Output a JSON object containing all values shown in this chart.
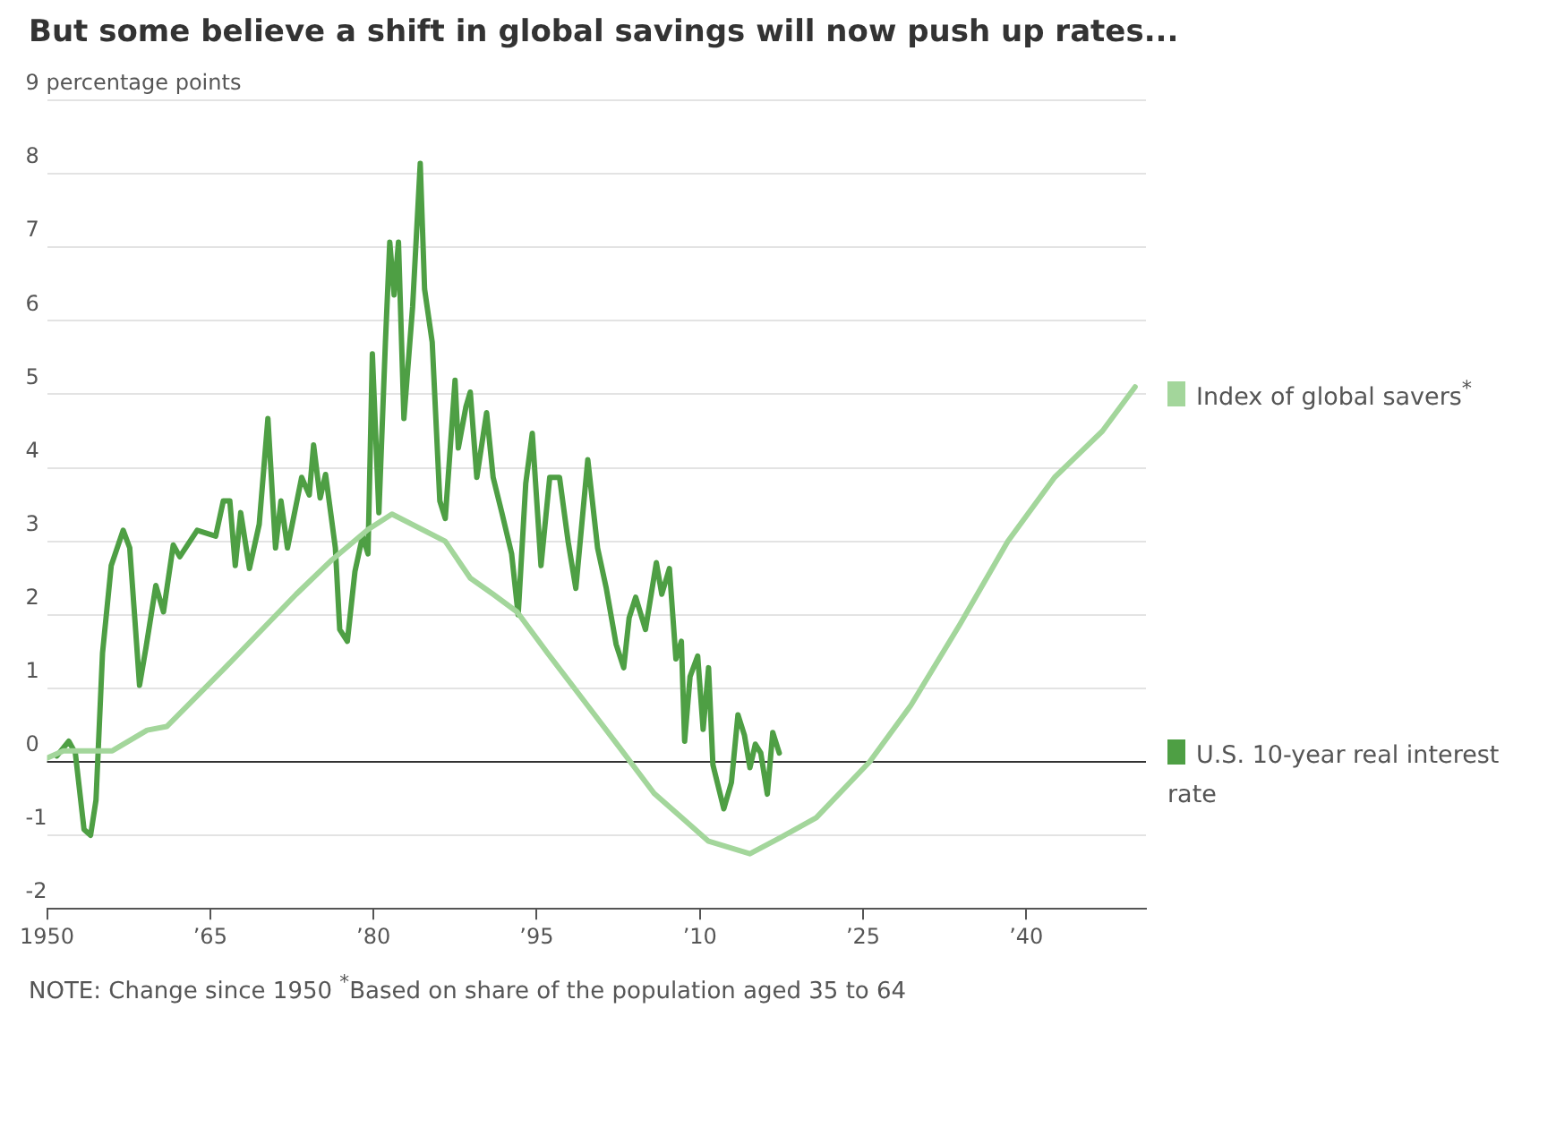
{
  "chart_data": {
    "type": "line",
    "title": "But some believe a shift in global savings will now push up rates...",
    "annotations": [
      "NOTE: Change since 1950 $^{*}$Based on share of the population aged 35 to 64"
    ],
    "series": [
      {
        "name": "Index of global savers$^{*}$",
        "color": "#a3d69b",
        "x": [
          1950,
          1951.5,
          1956,
          1959.2,
          1961,
          1966.3,
          1972.9,
          1976.2,
          1979.5,
          1981.7,
          1986.6,
          1988.9,
          1991,
          1993.2,
          1996,
          1999.3,
          2002.6,
          2005.8,
          2010.8,
          2014.6,
          2017.4,
          2020.7,
          2025.6,
          2029.4,
          2033.9,
          2038.3,
          2042.6,
          2047,
          2050
        ],
        "values": [
          0.05,
          0.15,
          0.15,
          0.43,
          0.48,
          1.27,
          2.28,
          2.75,
          3.16,
          3.37,
          3.0,
          2.5,
          2.28,
          2.04,
          1.48,
          0.84,
          0.2,
          -0.43,
          -1.08,
          -1.25,
          -1.03,
          -0.76,
          0,
          0.77,
          1.87,
          3.0,
          3.87,
          4.5,
          5.1
        ]
      },
      {
        "name": "U.S. 10-year real interest rate",
        "color": "#4e9f44",
        "x": [
          1950.9,
          1952.0,
          1952.6,
          1953.4,
          1954.0,
          1954.5,
          1955.1,
          1955.9,
          1957.0,
          1957.6,
          1958.1,
          1958.5,
          1959.1,
          1960.0,
          1960.7,
          1961.6,
          1962.2,
          1963.8,
          1965.5,
          1966.2,
          1966.8,
          1967.3,
          1967.8,
          1968.6,
          1969.5,
          1970.3,
          1971.0,
          1971.5,
          1972.1,
          1973.4,
          1974.1,
          1974.5,
          1975.1,
          1975.6,
          1976.5,
          1976.9,
          1977.6,
          1978.3,
          1979.0,
          1979.5,
          1979.9,
          1980.5,
          1981.1,
          1981.5,
          1981.9,
          1982.3,
          1982.8,
          1983.6,
          1984.3,
          1984.7,
          1985.4,
          1986.1,
          1986.6,
          1987.5,
          1987.8,
          1988.5,
          1988.9,
          1989.5,
          1990.4,
          1991.0,
          1991.8,
          1992.7,
          1993.3,
          1994.0,
          1994.6,
          1995.4,
          1996.2,
          1997.1,
          1997.9,
          1998.6,
          1999.7,
          2000.6,
          2001.4,
          2002.3,
          2003.0,
          2003.5,
          2004.1,
          2005.0,
          2006.0,
          2006.5,
          2007.2,
          2007.8,
          2008.3,
          2008.6,
          2009.1,
          2009.8,
          2010.3,
          2010.8,
          2011.2,
          2012.2,
          2012.9,
          2013.5,
          2014.1,
          2014.6,
          2015.1,
          2015.6,
          2016.2,
          2016.7,
          2017.3
        ],
        "values": [
          0.08,
          0.28,
          0.12,
          -0.92,
          -1.0,
          -0.52,
          1.48,
          2.67,
          3.15,
          2.91,
          1.88,
          1.04,
          1.56,
          2.4,
          2.04,
          2.95,
          2.79,
          3.15,
          3.07,
          3.55,
          3.55,
          2.67,
          3.39,
          2.63,
          3.23,
          4.67,
          2.91,
          3.55,
          2.91,
          3.87,
          3.63,
          4.31,
          3.59,
          3.91,
          2.91,
          1.8,
          1.64,
          2.59,
          3.07,
          2.83,
          5.55,
          3.39,
          5.71,
          7.07,
          6.35,
          7.07,
          4.67,
          6.19,
          8.14,
          6.43,
          5.71,
          3.55,
          3.31,
          5.19,
          4.27,
          4.83,
          5.03,
          3.87,
          4.75,
          3.87,
          3.39,
          2.83,
          2.0,
          3.79,
          4.47,
          2.67,
          3.87,
          3.87,
          2.99,
          2.36,
          4.11,
          2.91,
          2.36,
          1.6,
          1.28,
          1.96,
          2.24,
          1.8,
          2.71,
          2.28,
          2.63,
          1.4,
          1.64,
          0.28,
          1.16,
          1.44,
          0.44,
          1.28,
          -0.04,
          -0.64,
          -0.28,
          0.64,
          0.36,
          -0.08,
          0.24,
          0.12,
          -0.44,
          0.4,
          0.12
        ]
      }
    ],
    "xlim": [
      1950,
      2051
    ],
    "xticks": [
      1950,
      {
        "value": 1965,
        "label": "’65"
      },
      {
        "value": 1980,
        "label": "’80"
      },
      {
        "value": 1995,
        "label": "’95"
      },
      {
        "value": 2010,
        "label": "’10"
      },
      {
        "value": 2025,
        "label": "’25"
      },
      {
        "value": 2040,
        "label": "’40"
      }
    ],
    "ylim": [
      -2,
      9
    ],
    "yticks": [
      -2,
      -1,
      0,
      1,
      2,
      3,
      4,
      5,
      6,
      7,
      8,
      {
        "value": 9,
        "label": "9 percentage points"
      }
    ],
    "ref_lines": [
      {
        "axis": "y",
        "value": 0,
        "color": "#333333"
      }
    ],
    "grid": "y",
    "legend": "right",
    "marker": "none",
    "line_style": "solid"
  }
}
